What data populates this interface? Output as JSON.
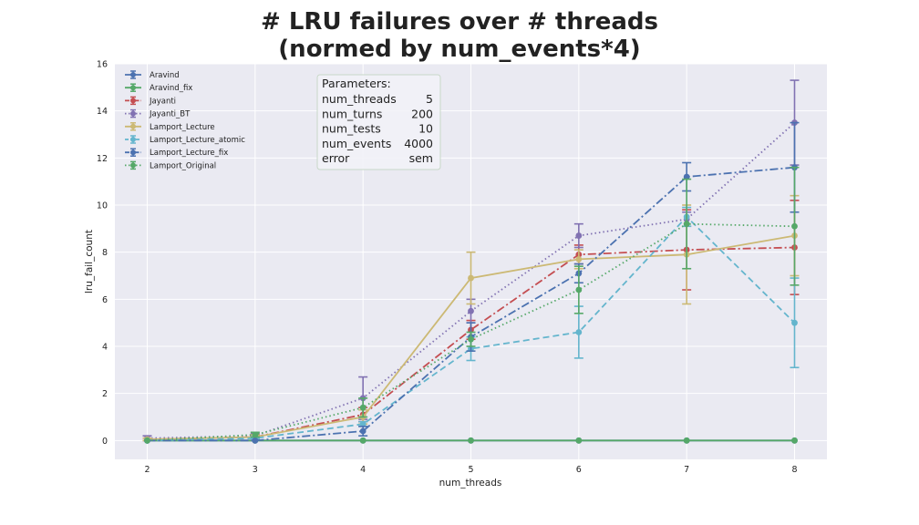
{
  "chart_data": {
    "type": "line",
    "title_lines": [
      "# LRU failures over # threads",
      "(normed by num_events*4)"
    ],
    "xlabel": "num_threads",
    "ylabel": "lru_fail_count",
    "x": [
      2,
      3,
      4,
      5,
      6,
      7,
      8
    ],
    "x_ticks": [
      "2",
      "3",
      "4",
      "5",
      "6",
      "7",
      "8"
    ],
    "y_ticks": [
      "0",
      "2",
      "4",
      "6",
      "8",
      "10",
      "12",
      "14",
      "16"
    ],
    "xlim": [
      1.7,
      8.3
    ],
    "ylim": [
      -0.8,
      16.0
    ],
    "grid": true,
    "legend_position": "top-left",
    "series": [
      {
        "name": "Aravind",
        "color": "#4C72B0",
        "style": "solid",
        "values": [
          0,
          0,
          0,
          0,
          0,
          0,
          0
        ],
        "err": [
          0,
          0,
          0,
          0,
          0,
          0,
          0
        ]
      },
      {
        "name": "Aravind_fix",
        "color": "#55A868",
        "style": "solid",
        "values": [
          0,
          0,
          0,
          0,
          0,
          0,
          0
        ],
        "err": [
          0,
          0,
          0,
          0,
          0,
          0,
          0
        ]
      },
      {
        "name": "Jayanti",
        "color": "#C44E52",
        "style": "dashdot",
        "values": [
          0.05,
          0.15,
          1.1,
          4.7,
          7.9,
          8.1,
          8.2
        ],
        "err": [
          0.05,
          0.1,
          0.3,
          0.4,
          0.4,
          1.7,
          2.0
        ]
      },
      {
        "name": "Jayanti_BT",
        "color": "#8172B2",
        "style": "dotted",
        "values": [
          0.1,
          0.2,
          1.8,
          5.5,
          8.7,
          9.4,
          13.5
        ],
        "err": [
          0.1,
          0.1,
          0.9,
          0.5,
          0.5,
          0.3,
          1.8
        ]
      },
      {
        "name": "Lamport_Lecture",
        "color": "#CCB974",
        "style": "solid",
        "values": [
          0.05,
          0.15,
          1.0,
          6.9,
          7.7,
          7.9,
          8.7
        ],
        "err": [
          0.05,
          0.1,
          0.3,
          1.1,
          0.4,
          2.1,
          1.7
        ]
      },
      {
        "name": "Lamport_Lecture_atomic",
        "color": "#64B5CD",
        "style": "dashed",
        "values": [
          0.0,
          0.1,
          0.7,
          3.9,
          4.6,
          9.5,
          5.0
        ],
        "err": [
          0.0,
          0.05,
          0.1,
          0.5,
          1.1,
          0.4,
          1.9
        ]
      },
      {
        "name": "Lamport_Lecture_fix",
        "color": "#4C72B0",
        "style": "dashdot",
        "values": [
          0.0,
          0.0,
          0.4,
          4.4,
          7.1,
          11.2,
          11.6
        ],
        "err": [
          0.0,
          0.0,
          0.2,
          0.6,
          0.4,
          0.6,
          1.9
        ]
      },
      {
        "name": "Lamport_Original",
        "color": "#55A868",
        "style": "dotted",
        "values": [
          0.0,
          0.25,
          1.4,
          4.3,
          6.4,
          9.2,
          9.1
        ],
        "err": [
          0.0,
          0.1,
          0.4,
          0.3,
          1.0,
          1.9,
          2.5
        ]
      }
    ]
  },
  "parameters_box": {
    "heading": "Parameters:",
    "rows": [
      {
        "key": "num_threads",
        "value": "5"
      },
      {
        "key": "num_turns",
        "value": "200"
      },
      {
        "key": "num_tests",
        "value": "10"
      },
      {
        "key": "num_events",
        "value": "4000"
      },
      {
        "key": "error",
        "value": "sem"
      }
    ]
  }
}
